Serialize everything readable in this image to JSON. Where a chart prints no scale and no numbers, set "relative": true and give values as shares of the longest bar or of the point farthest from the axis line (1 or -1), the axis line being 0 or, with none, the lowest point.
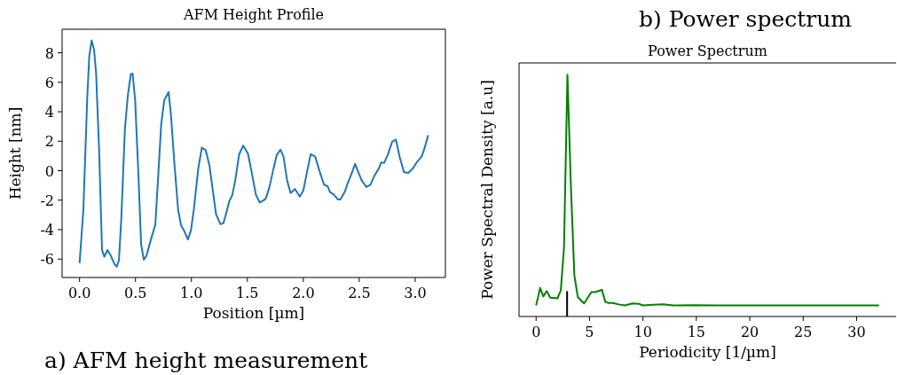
{
  "chart_data": [
    {
      "type": "line",
      "title": "AFM Height Profile",
      "xlabel": "Position [µm]",
      "ylabel": "Height [nm]",
      "annotations": [
        "a) AFM height measurement"
      ],
      "xlim": [
        -0.156,
        3.27
      ],
      "ylim": [
        -7.25,
        9.6
      ],
      "xticks": [
        {
          "value": 0,
          "label": "0.0"
        },
        {
          "value": 0.5,
          "label": "0.5"
        },
        {
          "value": 1,
          "label": "1.0"
        },
        {
          "value": 1.5,
          "label": "1.5"
        },
        {
          "value": 2,
          "label": "2.0"
        },
        {
          "value": 2.5,
          "label": "2.5"
        },
        {
          "value": 3,
          "label": "3.0"
        }
      ],
      "yticks": [
        -6,
        -4,
        -2,
        0,
        2,
        4,
        6,
        8
      ],
      "series": [
        {
          "color": "#1f77b4",
          "x": [
            0,
            0.034,
            0.069,
            0.087,
            0.108,
            0.13,
            0.148,
            0.175,
            0.201,
            0.222,
            0.249,
            0.28,
            0.312,
            0.333,
            0.352,
            0.373,
            0.405,
            0.431,
            0.458,
            0.474,
            0.497,
            0.526,
            0.55,
            0.574,
            0.598,
            0.638,
            0.677,
            0.704,
            0.73,
            0.757,
            0.796,
            0.817,
            0.849,
            0.881,
            0.907,
            0.934,
            0.968,
            0.995,
            1.021,
            1.061,
            1.093,
            1.127,
            1.161,
            1.193,
            1.22,
            1.259,
            1.286,
            1.312,
            1.339,
            1.365,
            1.392,
            1.426,
            1.463,
            1.505,
            1.537,
            1.577,
            1.611,
            1.643,
            1.664,
            1.696,
            1.728,
            1.762,
            1.796,
            1.823,
            1.855,
            1.886,
            1.926,
            1.968,
            2.0,
            2.034,
            2.066,
            2.106,
            2.146,
            2.185,
            2.217,
            2.238,
            2.272,
            2.31,
            2.331,
            2.37,
            2.397,
            2.429,
            2.463,
            2.489,
            2.521,
            2.563,
            2.6,
            2.635,
            2.675,
            2.696,
            2.722,
            2.754,
            2.794,
            2.828,
            2.86,
            2.9,
            2.939,
            2.979,
            3.013,
            3.058,
            3.085,
            3.116
          ],
          "values": [
            -6.28,
            -2.66,
            4.98,
            7.8,
            8.84,
            8.2,
            6.59,
            1.36,
            -5.38,
            -5.84,
            -5.38,
            -5.78,
            -6.34,
            -6.52,
            -6.08,
            -3.27,
            2.77,
            5.08,
            6.55,
            6.59,
            4.78,
            -0.25,
            -4.98,
            -6.04,
            -5.78,
            -4.67,
            -3.67,
            -0.25,
            3.17,
            4.78,
            5.34,
            3.78,
            0.36,
            -2.66,
            -3.71,
            -4.07,
            -4.67,
            -4.07,
            -2.66,
            0.15,
            1.56,
            1.4,
            0.36,
            -1.45,
            -2.96,
            -3.63,
            -3.57,
            -2.86,
            -2.06,
            -1.66,
            -0.65,
            1.1,
            1.7,
            1.16,
            -0.05,
            -1.66,
            -2.16,
            -2.02,
            -1.9,
            -1.15,
            -0.05,
            1.06,
            1.42,
            0.96,
            -0.65,
            -1.52,
            -1.25,
            -1.76,
            -1.35,
            -0.05,
            1.12,
            0.96,
            -0.05,
            -0.95,
            -1.05,
            -1.45,
            -1.62,
            -1.96,
            -1.96,
            -1.45,
            -0.85,
            -0.25,
            0.46,
            -0.05,
            -0.65,
            -1.11,
            -0.95,
            -0.35,
            0.15,
            0.56,
            0.52,
            1.06,
            1.96,
            2.11,
            0.96,
            -0.11,
            -0.15,
            0.15,
            0.56,
            0.96,
            1.56,
            2.41
          ]
        }
      ]
    },
    {
      "type": "line",
      "title": "Power Spectrum",
      "xlabel": "Periodicity [1/µm]",
      "ylabel": "Power Spectral Density [a.u]",
      "annotations": [
        "b) Power spectrum"
      ],
      "relative": true,
      "xlim": [
        -1.6,
        33.7
      ],
      "xticks": [
        0,
        5,
        10,
        15,
        20,
        25,
        30
      ],
      "ref_lines": [
        {
          "axis": "x",
          "value": 2.9,
          "color": "#000000"
        }
      ],
      "series": [
        {
          "color": "#008000",
          "x": [
            0,
            0.38,
            0.67,
            1.0,
            1.32,
            1.99,
            2.31,
            2.61,
            2.93,
            3.26,
            3.58,
            3.9,
            4.49,
            5.17,
            5.51,
            6.16,
            6.48,
            6.81,
            7.18,
            7.72,
            8.34,
            9.01,
            9.66,
            10.0,
            10.95,
            11.9,
            12.8,
            14.7,
            16.9,
            32.1
          ],
          "values": [
            0.046,
            0.118,
            0.083,
            0.105,
            0.078,
            0.075,
            0.108,
            0.285,
            1,
            0.533,
            0.17,
            0.08,
            0.054,
            0.101,
            0.101,
            0.11,
            0.06,
            0.056,
            0.056,
            0.05,
            0.046,
            0.054,
            0.052,
            0.046,
            0.049,
            0.05,
            0.046,
            0.047,
            0.046,
            0.046
          ]
        }
      ]
    }
  ]
}
